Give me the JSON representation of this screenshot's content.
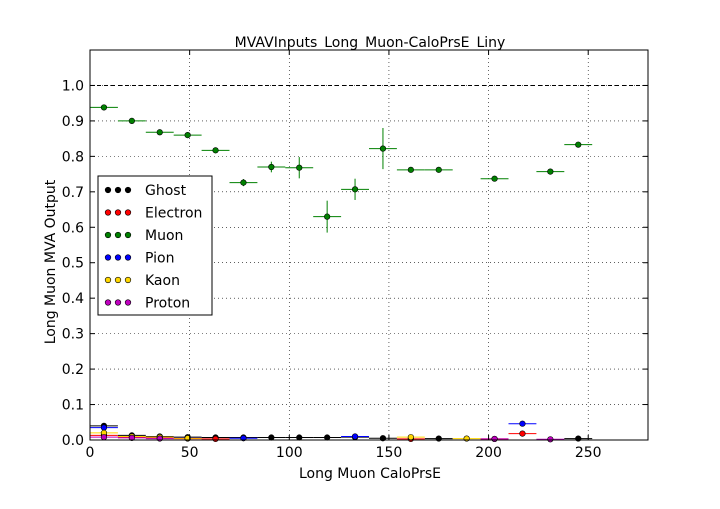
{
  "chart_data": {
    "type": "scatter",
    "title": "MVAVInputs_Long_Muon-CaloPrsE_Liny",
    "xlabel": "Long Muon CaloPrsE",
    "ylabel": "Long Muon MVA Output",
    "xlim": [
      0,
      280
    ],
    "ylim": [
      0,
      1.1
    ],
    "x_ticks": [
      0,
      50,
      100,
      150,
      200,
      250
    ],
    "x_tick_labels": [
      "0",
      "50",
      "100",
      "150",
      "200",
      "250"
    ],
    "y_ticks": [
      0.0,
      0.1,
      0.2,
      0.3,
      0.4,
      0.5,
      0.6,
      0.7,
      0.8,
      0.9,
      1.0
    ],
    "y_tick_labels": [
      "0.0",
      "0.1",
      "0.2",
      "0.3",
      "0.4",
      "0.5",
      "0.6",
      "0.7",
      "0.8",
      "0.9",
      "1.0"
    ],
    "grid": true,
    "reference_line": 1.0,
    "legend_position": "center-left",
    "series": [
      {
        "name": "Ghost",
        "color": "#000000",
        "points": [
          {
            "x": 7,
            "y": 0.04,
            "xerr": 7,
            "yerr": 0.005
          },
          {
            "x": 21,
            "y": 0.013,
            "xerr": 7,
            "yerr": 0.002
          },
          {
            "x": 35,
            "y": 0.01,
            "xerr": 7,
            "yerr": 0.002
          },
          {
            "x": 49,
            "y": 0.008,
            "xerr": 7,
            "yerr": 0.002
          },
          {
            "x": 63,
            "y": 0.007,
            "xerr": 7,
            "yerr": 0.002
          },
          {
            "x": 77,
            "y": 0.007,
            "xerr": 7,
            "yerr": 0.002
          },
          {
            "x": 91,
            "y": 0.007,
            "xerr": 7,
            "yerr": 0.002
          },
          {
            "x": 105,
            "y": 0.007,
            "xerr": 7,
            "yerr": 0.002
          },
          {
            "x": 119,
            "y": 0.007,
            "xerr": 7,
            "yerr": 0.002
          },
          {
            "x": 133,
            "y": 0.008,
            "xerr": 7,
            "yerr": 0.002
          },
          {
            "x": 147,
            "y": 0.005,
            "xerr": 7,
            "yerr": 0.002
          },
          {
            "x": 175,
            "y": 0.004,
            "xerr": 7,
            "yerr": 0.002
          },
          {
            "x": 245,
            "y": 0.004,
            "xerr": 7,
            "yerr": 0.002
          }
        ]
      },
      {
        "name": "Electron",
        "color": "#ff0000",
        "points": [
          {
            "x": 7,
            "y": 0.013,
            "xerr": 7,
            "yerr": 0.003
          },
          {
            "x": 21,
            "y": 0.008,
            "xerr": 7,
            "yerr": 0.002
          },
          {
            "x": 35,
            "y": 0.006,
            "xerr": 7,
            "yerr": 0.002
          },
          {
            "x": 49,
            "y": 0.004,
            "xerr": 7,
            "yerr": 0.002
          },
          {
            "x": 63,
            "y": 0.003,
            "xerr": 7,
            "yerr": 0.002
          },
          {
            "x": 161,
            "y": 0.003,
            "xerr": 7,
            "yerr": 0.002
          },
          {
            "x": 203,
            "y": 0.003,
            "xerr": 7,
            "yerr": 0.002
          },
          {
            "x": 217,
            "y": 0.018,
            "xerr": 7,
            "yerr": 0.005
          }
        ]
      },
      {
        "name": "Muon",
        "color": "#008000",
        "points": [
          {
            "x": 7,
            "y": 0.938,
            "xerr": 7,
            "yerr": 0.005
          },
          {
            "x": 21,
            "y": 0.9,
            "xerr": 7,
            "yerr": 0.006
          },
          {
            "x": 35,
            "y": 0.868,
            "xerr": 7,
            "yerr": 0.006
          },
          {
            "x": 49,
            "y": 0.86,
            "xerr": 7,
            "yerr": 0.007
          },
          {
            "x": 63,
            "y": 0.817,
            "xerr": 7,
            "yerr": 0.008
          },
          {
            "x": 77,
            "y": 0.726,
            "xerr": 7,
            "yerr": 0.01
          },
          {
            "x": 91,
            "y": 0.77,
            "xerr": 7,
            "yerr": 0.015
          },
          {
            "x": 105,
            "y": 0.768,
            "xerr": 7,
            "yerr": 0.03
          },
          {
            "x": 119,
            "y": 0.63,
            "xerr": 7,
            "yerr": 0.045
          },
          {
            "x": 133,
            "y": 0.707,
            "xerr": 7,
            "yerr": 0.03
          },
          {
            "x": 147,
            "y": 0.822,
            "xerr": 7,
            "yerr": 0.058
          },
          {
            "x": 161,
            "y": 0.762,
            "xerr": 7,
            "yerr": 0.005
          },
          {
            "x": 175,
            "y": 0.762,
            "xerr": 7,
            "yerr": 0.005
          },
          {
            "x": 203,
            "y": 0.737,
            "xerr": 7,
            "yerr": 0.005
          },
          {
            "x": 231,
            "y": 0.757,
            "xerr": 7,
            "yerr": 0.005
          },
          {
            "x": 245,
            "y": 0.833,
            "xerr": 7,
            "yerr": 0.005
          }
        ]
      },
      {
        "name": "Pion",
        "color": "#0000ff",
        "points": [
          {
            "x": 7,
            "y": 0.035,
            "xerr": 7,
            "yerr": 0.005
          },
          {
            "x": 21,
            "y": 0.01,
            "xerr": 7,
            "yerr": 0.002
          },
          {
            "x": 35,
            "y": 0.008,
            "xerr": 7,
            "yerr": 0.002
          },
          {
            "x": 49,
            "y": 0.006,
            "xerr": 7,
            "yerr": 0.002
          },
          {
            "x": 77,
            "y": 0.005,
            "xerr": 7,
            "yerr": 0.002
          },
          {
            "x": 133,
            "y": 0.01,
            "xerr": 7,
            "yerr": 0.002
          },
          {
            "x": 217,
            "y": 0.046,
            "xerr": 7,
            "yerr": 0.005
          }
        ]
      },
      {
        "name": "Kaon",
        "color": "#ffd700",
        "points": [
          {
            "x": 7,
            "y": 0.02,
            "xerr": 7,
            "yerr": 0.003
          },
          {
            "x": 21,
            "y": 0.01,
            "xerr": 7,
            "yerr": 0.002
          },
          {
            "x": 35,
            "y": 0.008,
            "xerr": 7,
            "yerr": 0.002
          },
          {
            "x": 49,
            "y": 0.005,
            "xerr": 7,
            "yerr": 0.002
          },
          {
            "x": 161,
            "y": 0.008,
            "xerr": 7,
            "yerr": 0.002
          },
          {
            "x": 189,
            "y": 0.004,
            "xerr": 7,
            "yerr": 0.002
          }
        ]
      },
      {
        "name": "Proton",
        "color": "#bf00bf",
        "points": [
          {
            "x": 7,
            "y": 0.008,
            "xerr": 7,
            "yerr": 0.002
          },
          {
            "x": 21,
            "y": 0.006,
            "xerr": 7,
            "yerr": 0.002
          },
          {
            "x": 35,
            "y": 0.004,
            "xerr": 7,
            "yerr": 0.002
          },
          {
            "x": 203,
            "y": 0.003,
            "xerr": 7,
            "yerr": 0.002
          },
          {
            "x": 231,
            "y": 0.002,
            "xerr": 7,
            "yerr": 0.002
          }
        ]
      }
    ]
  }
}
